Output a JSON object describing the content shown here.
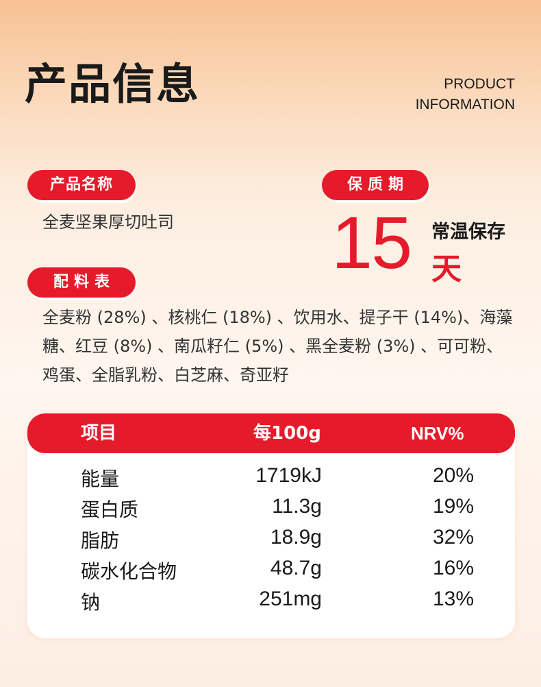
{
  "header": {
    "title": "产品信息",
    "title_en_line1": "PRODUCT",
    "title_en_line2": "INFORMATION"
  },
  "product_name": {
    "label": "产品名称",
    "value": "全麦坚果厚切吐司"
  },
  "shelf_life": {
    "label": "保质期",
    "number": "15",
    "storage": "常温保存",
    "unit": "天"
  },
  "ingredients": {
    "label": "配料表",
    "text": "全麦粉 (28%) 、核桃仁 (18%) 、饮用水、提子干 (14%)、海藻糖、红豆 (8%) 、南瓜籽仁 (5%) 、黑全麦粉 (3%) 、可可粉、鸡蛋、全脂乳粉、白芝麻、奇亚籽"
  },
  "nutrition": {
    "headers": [
      "项目",
      "每100g",
      "NRV%"
    ],
    "rows": [
      {
        "item": "能量",
        "per100g": "1719kJ",
        "nrv": "20%"
      },
      {
        "item": "蛋白质",
        "per100g": "11.3g",
        "nrv": "19%"
      },
      {
        "item": "脂肪",
        "per100g": "18.9g",
        "nrv": "32%"
      },
      {
        "item": "碳水化合物",
        "per100g": "48.7g",
        "nrv": "16%"
      },
      {
        "item": "钠",
        "per100g": "251mg",
        "nrv": "13%"
      }
    ]
  },
  "colors": {
    "accent": "#e51b2b",
    "text": "#1a1a1a",
    "background_top": "#f7c193"
  }
}
